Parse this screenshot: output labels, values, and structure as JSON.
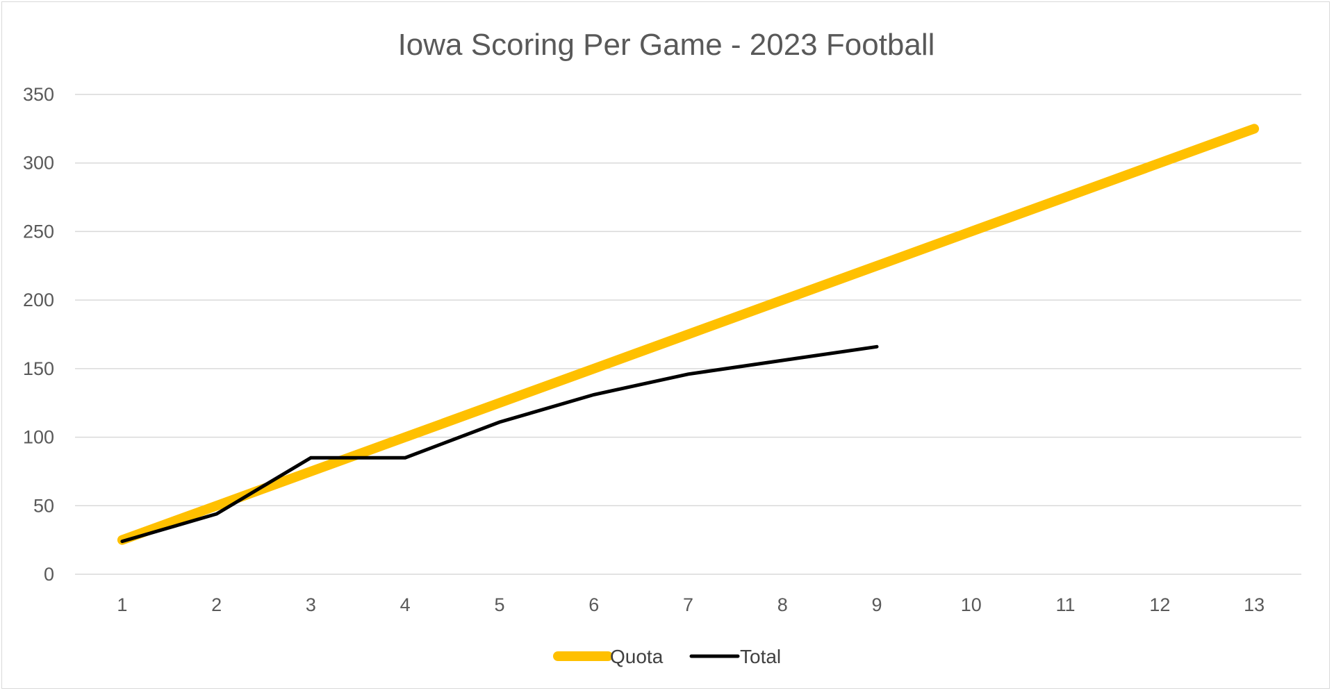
{
  "chart_data": {
    "type": "line",
    "title": "Iowa Scoring Per Game - 2023 Football",
    "xlabel": "",
    "ylabel": "",
    "categories": [
      "1",
      "2",
      "3",
      "4",
      "5",
      "6",
      "7",
      "8",
      "9",
      "10",
      "11",
      "12",
      "13"
    ],
    "ylim": [
      0,
      350
    ],
    "yticks": [
      "0",
      "50",
      "100",
      "150",
      "200",
      "250",
      "300",
      "350"
    ],
    "grid": true,
    "legend_position": "bottom",
    "series": [
      {
        "name": "Quota",
        "color": "#FFC000",
        "values": [
          25,
          50,
          75,
          100,
          125,
          150,
          175,
          200,
          225,
          250,
          275,
          300,
          325
        ]
      },
      {
        "name": "Total",
        "color": "#000000",
        "values": [
          24,
          44,
          85,
          85,
          111,
          131,
          146,
          156,
          166,
          null,
          null,
          null,
          null
        ]
      }
    ]
  },
  "colors": {
    "gridline": "#d9d9d9",
    "axis_text": "#595959"
  }
}
